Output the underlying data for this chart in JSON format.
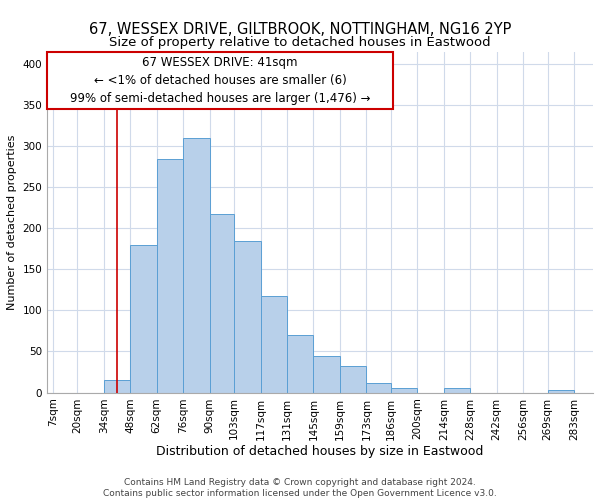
{
  "title": "67, WESSEX DRIVE, GILTBROOK, NOTTINGHAM, NG16 2YP",
  "subtitle": "Size of property relative to detached houses in Eastwood",
  "xlabel": "Distribution of detached houses by size in Eastwood",
  "ylabel": "Number of detached properties",
  "bar_left_edges": [
    7,
    20,
    34,
    48,
    62,
    76,
    90,
    103,
    117,
    131,
    145,
    159,
    173,
    186,
    200,
    214,
    228,
    242,
    256,
    269
  ],
  "bar_heights": [
    0,
    0,
    15,
    180,
    285,
    310,
    218,
    185,
    117,
    70,
    45,
    32,
    11,
    5,
    0,
    5,
    0,
    0,
    0,
    3
  ],
  "bar_widths": [
    13,
    14,
    14,
    14,
    14,
    14,
    13,
    14,
    14,
    14,
    14,
    14,
    13,
    14,
    14,
    14,
    14,
    14,
    13,
    14
  ],
  "bar_color": "#b8d0ea",
  "bar_edge_color": "#5a9fd4",
  "property_line_x": 41,
  "property_line_color": "#cc0000",
  "ylim": [
    0,
    415
  ],
  "xlim": [
    4,
    293
  ],
  "xtick_labels": [
    "7sqm",
    "20sqm",
    "34sqm",
    "48sqm",
    "62sqm",
    "76sqm",
    "90sqm",
    "103sqm",
    "117sqm",
    "131sqm",
    "145sqm",
    "159sqm",
    "173sqm",
    "186sqm",
    "200sqm",
    "214sqm",
    "228sqm",
    "242sqm",
    "256sqm",
    "269sqm",
    "283sqm"
  ],
  "xtick_positions": [
    7,
    20,
    34,
    48,
    62,
    76,
    90,
    103,
    117,
    131,
    145,
    159,
    173,
    186,
    200,
    214,
    228,
    242,
    256,
    269,
    283
  ],
  "annotation_line1": "67 WESSEX DRIVE: 41sqm",
  "annotation_line2": "← <1% of detached houses are smaller (6)",
  "annotation_line3": "99% of semi-detached houses are larger (1,476) →",
  "footer_text": "Contains HM Land Registry data © Crown copyright and database right 2024.\nContains public sector information licensed under the Open Government Licence v3.0.",
  "background_color": "#ffffff",
  "grid_color": "#d0daea",
  "ytick_values": [
    0,
    50,
    100,
    150,
    200,
    250,
    300,
    350,
    400
  ],
  "title_fontsize": 10.5,
  "subtitle_fontsize": 9.5,
  "xlabel_fontsize": 9,
  "ylabel_fontsize": 8,
  "tick_fontsize": 7.5,
  "annot_fontsize": 8.5,
  "footer_fontsize": 6.5
}
